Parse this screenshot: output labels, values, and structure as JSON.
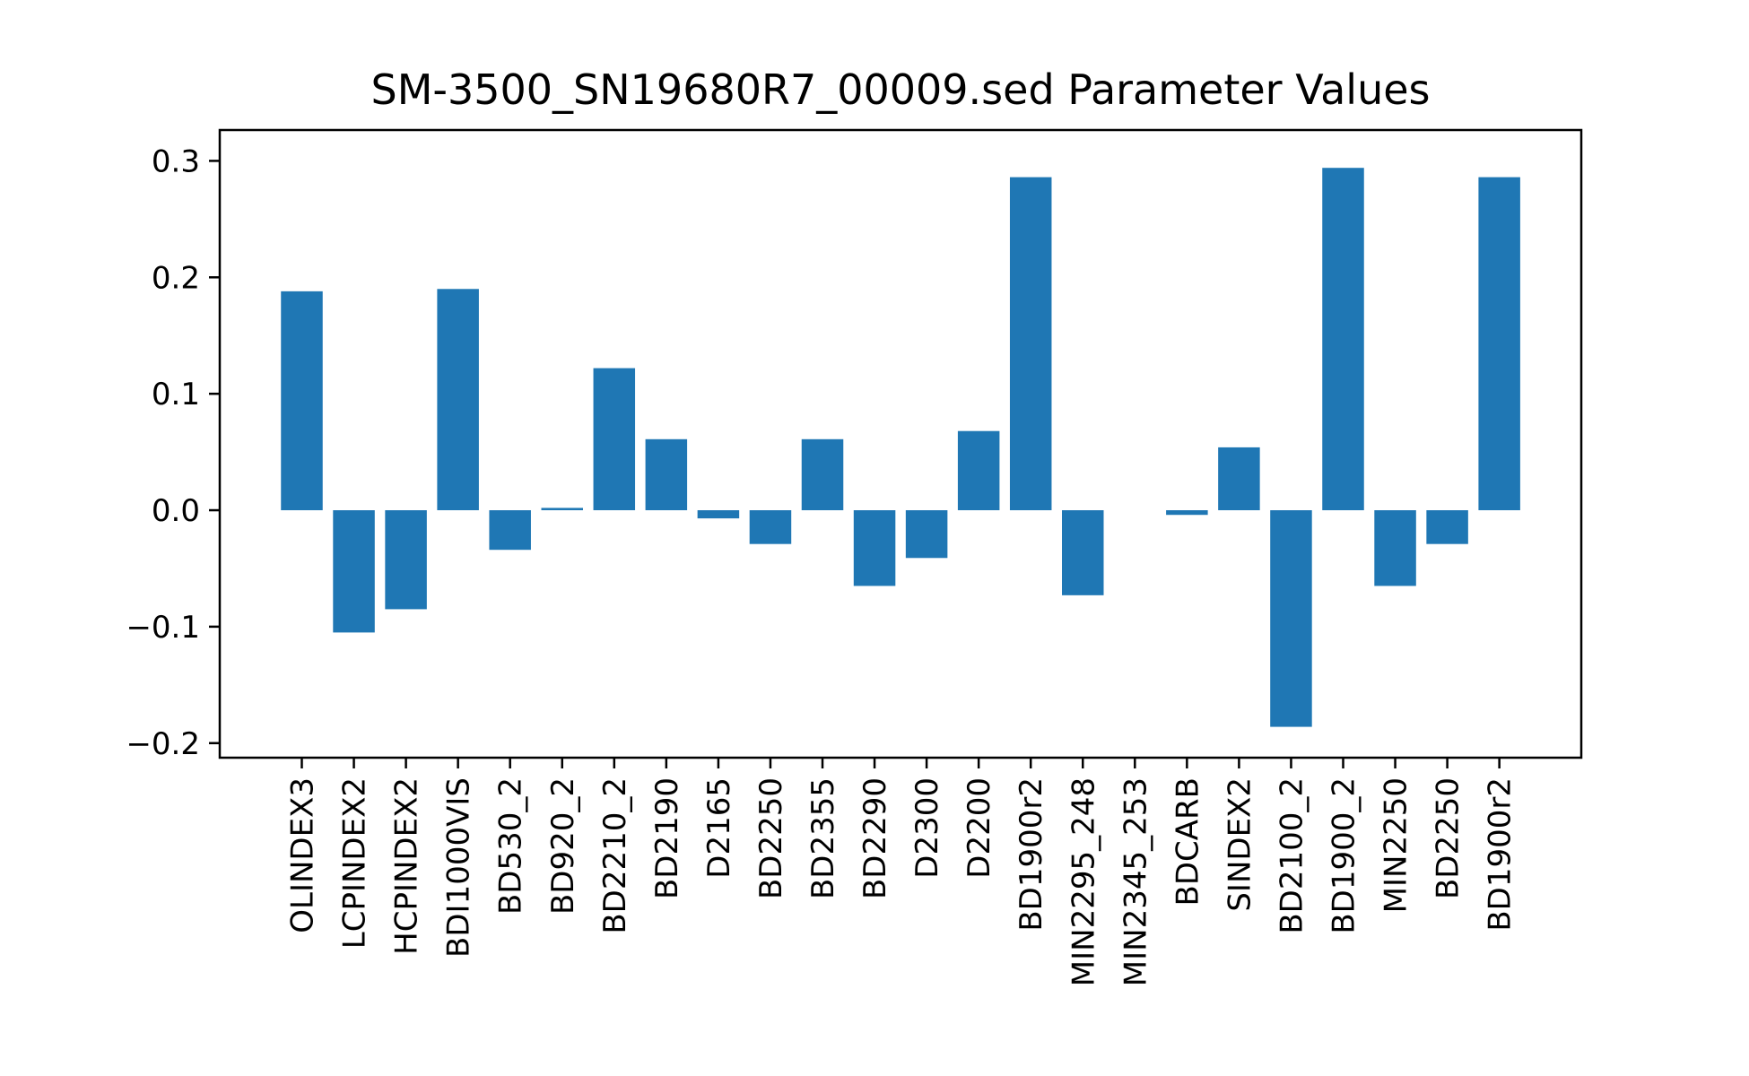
{
  "chart_data": {
    "type": "bar",
    "title": "SM-3500_SN19680R7_00009.sed Parameter Values",
    "xlabel": "",
    "ylabel": "",
    "ylim": [
      -0.2,
      0.3
    ],
    "yticks": [
      0.3,
      0.2,
      0.1,
      0.0,
      -0.1,
      -0.2
    ],
    "ytick_labels": [
      "0.3",
      "0.2",
      "0.1",
      "0.0",
      "−0.1",
      "−0.2"
    ],
    "grid": false,
    "categories": [
      "OLINDEX3",
      "LCPINDEX2",
      "HCPINDEX2",
      "BDI1000VIS",
      "BD530_2",
      "BD920_2",
      "BD2210_2",
      "BD2190",
      "D2165",
      "BD2250",
      "BD2355",
      "BD2290",
      "D2300",
      "D2200",
      "BD1900r2",
      "MIN2295_248",
      "MIN2345_253",
      "BDCARB",
      "SINDEX2",
      "BD2100_2",
      "BD1900_2",
      "MIN2250",
      "BD2250",
      "BD1900r2"
    ],
    "values": [
      0.188,
      -0.105,
      -0.085,
      0.19,
      -0.034,
      0.002,
      0.122,
      0.061,
      -0.007,
      -0.029,
      0.061,
      -0.065,
      -0.041,
      0.068,
      0.286,
      -0.073,
      0.0,
      -0.004,
      0.054,
      -0.186,
      0.294,
      -0.065,
      -0.029,
      0.286
    ],
    "bar_color": "#1f77b4"
  }
}
